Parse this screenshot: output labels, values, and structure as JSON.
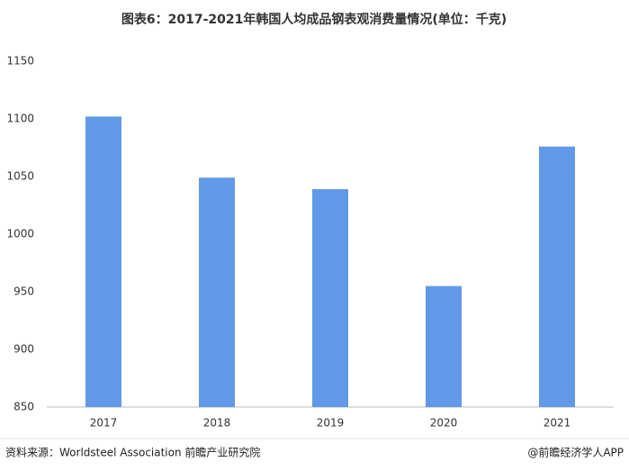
{
  "chart_data": {
    "type": "bar",
    "title": "图表6：2017-2021年韩国人均成品钢表观消费量情况(单位：千克)",
    "categories": [
      "2017",
      "2018",
      "2019",
      "2020",
      "2021"
    ],
    "values": [
      1102,
      1049,
      1039,
      955,
      1076
    ],
    "color": "#6199e8",
    "ylim": [
      850,
      1150
    ],
    "yticks": [
      850,
      900,
      950,
      1000,
      1050,
      1100,
      1150
    ],
    "grid": false
  },
  "footer": {
    "source": "资料来源：Worldsteel Association 前瞻产业研究院",
    "credit": "@前瞻经济学人APP"
  }
}
